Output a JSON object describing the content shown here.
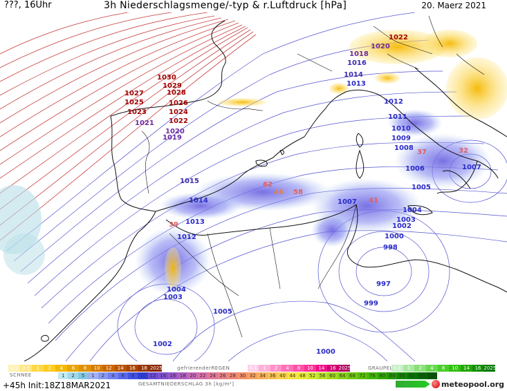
{
  "header": {
    "left": "???, 16Uhr",
    "title": "3h Niederschlagsmenge/-typ & r.Luftdruck [hPa]",
    "date": "20. Maerz 2021"
  },
  "pressure_labels": [
    {
      "text": "1030",
      "color": "#a00000"
    },
    {
      "text": "1029",
      "color": "#a00000"
    },
    {
      "text": "1028",
      "color": "#a00000"
    },
    {
      "text": "1027",
      "color": "#a00000"
    },
    {
      "text": "1026",
      "color": "#a00000"
    },
    {
      "text": "1025",
      "color": "#a00000"
    },
    {
      "text": "1024",
      "color": "#a00000"
    },
    {
      "text": "1023",
      "color": "#a00000"
    },
    {
      "text": "1022",
      "color": "#a00000"
    },
    {
      "text": "1022",
      "color": "#a00000"
    },
    {
      "text": "1021",
      "color": "#6a2aa0"
    },
    {
      "text": "1020",
      "color": "#6a2aa0"
    },
    {
      "text": "1020",
      "color": "#6a2aa0"
    },
    {
      "text": "1019",
      "color": "#6a2aa0"
    },
    {
      "text": "1018",
      "color": "#6a2aa0"
    },
    {
      "text": "1016",
      "color": "#3a2ab0"
    },
    {
      "text": "1015",
      "color": "#3a2ab0"
    },
    {
      "text": "1014",
      "color": "#3a2ab0"
    },
    {
      "text": "1014",
      "color": "#2a2ac8"
    },
    {
      "text": "1013",
      "color": "#2a2ac8"
    },
    {
      "text": "1013",
      "color": "#2a2ac8"
    },
    {
      "text": "1012",
      "color": "#2a2ac8"
    },
    {
      "text": "1012",
      "color": "#2a2ac8"
    },
    {
      "text": "1011",
      "color": "#2a2ac8"
    },
    {
      "text": "1010",
      "color": "#2a2ac8"
    },
    {
      "text": "1009",
      "color": "#2a2ac8"
    },
    {
      "text": "1008",
      "color": "#2a2ac8"
    },
    {
      "text": "1007",
      "color": "#2a2ac8"
    },
    {
      "text": "1007",
      "color": "#2a2ac8"
    },
    {
      "text": "1006",
      "color": "#2a2ac8"
    },
    {
      "text": "1006",
      "color": "#2a2ac8"
    },
    {
      "text": "1005",
      "color": "#2a2ac8"
    },
    {
      "text": "1005",
      "color": "#2a2ac8"
    },
    {
      "text": "1004",
      "color": "#2a2ac8"
    },
    {
      "text": "1004",
      "color": "#2a2ac8"
    },
    {
      "text": "1003",
      "color": "#2a2ac8"
    },
    {
      "text": "1003",
      "color": "#2a2ac8"
    },
    {
      "text": "1002",
      "color": "#2a2ac8"
    },
    {
      "text": "1002",
      "color": "#2a2ac8"
    },
    {
      "text": "1000",
      "color": "#2a2ac8"
    },
    {
      "text": "1000",
      "color": "#2a2ac8"
    },
    {
      "text": "999",
      "color": "#2a2ac8"
    },
    {
      "text": "998",
      "color": "#2a2ac8"
    },
    {
      "text": "997",
      "color": "#2a2ac8"
    }
  ],
  "precip_labels": [
    {
      "text": "62",
      "color": "#e06060"
    },
    {
      "text": "46",
      "color": "#e08050"
    },
    {
      "text": "58",
      "color": "#e06060"
    },
    {
      "text": "37",
      "color": "#e06060"
    },
    {
      "text": "41",
      "color": "#e06060"
    },
    {
      "text": "39",
      "color": "#e06060"
    },
    {
      "text": "32",
      "color": "#e06060"
    }
  ],
  "legend": {
    "schnee_label": "SCHNEE",
    "regen_label": "gefrierenderREGEN",
    "graupel_label": "GRAUPEL",
    "gesamt_label": "GESAMTNIEDERSCHLAG 3h [kg/m²]",
    "snow_scale": [
      "0.1",
      "0.5",
      "1",
      "2",
      "4",
      "6",
      "8",
      "10",
      "12",
      "14",
      "16",
      "18",
      "2025+"
    ],
    "rain_scale": [
      "0.1",
      "1",
      "2",
      "4",
      "8",
      "10",
      "14",
      "16",
      "2025+"
    ],
    "graupel_scale": [
      "0.1",
      "1",
      "2",
      "4",
      "8",
      "10",
      "14",
      "16",
      "2025+"
    ],
    "total_scale": [
      "1",
      "2",
      "5",
      "1",
      "2",
      "4",
      "6",
      "8",
      "10",
      "12",
      "14",
      "16",
      "18",
      "20",
      "22",
      "24",
      "26",
      "28",
      "30",
      "32",
      "34",
      "36",
      "40",
      "44",
      "48",
      "52",
      "56",
      "60",
      "64",
      "68",
      "72",
      "76",
      "80",
      "84",
      "88",
      "92",
      "96",
      "100"
    ],
    "snow_colors": [
      "#fff2b0",
      "#ffe680",
      "#ffd84a",
      "#ffcc20",
      "#f5b800",
      "#eba400",
      "#e09000",
      "#d47a00",
      "#c86600",
      "#b85400",
      "#a84400",
      "#983400",
      "#882400"
    ],
    "rain_colors": [
      "#ffd0e8",
      "#ffb0d8",
      "#ff90c8",
      "#ff70b8",
      "#ff50a8",
      "#ff3098",
      "#f01088",
      "#d00070",
      "#b00060"
    ],
    "graupel_colors": [
      "#c8f0c8",
      "#a8e8a0",
      "#88e078",
      "#68d850",
      "#48d028",
      "#30c010",
      "#20a800",
      "#109000",
      "#007800"
    ],
    "total_colors": [
      "#c0e8f0",
      "#a0d8e8",
      "#80c8e0",
      "#a0b0f0",
      "#8898f0",
      "#7080f0",
      "#5868f0",
      "#4050e8",
      "#3040d8",
      "#6a48d8",
      "#8050d0",
      "#9858c8",
      "#b060c0",
      "#c868b8",
      "#d870a8",
      "#e07898",
      "#e88088",
      "#f08878",
      "#f89068",
      "#f8a060",
      "#f8b058",
      "#f8c050",
      "#f8d048",
      "#f8e040",
      "#e8e838",
      "#d0e830",
      "#b8e028",
      "#a0d820",
      "#88d018",
      "#70c810",
      "#58c008",
      "#40b800",
      "#30a800",
      "#209800",
      "#108800",
      "#007800",
      "#006800",
      "#005800"
    ]
  },
  "footer": {
    "init": "+45h  Init:18Z18MAR2021",
    "logo": "meteopool.org"
  }
}
